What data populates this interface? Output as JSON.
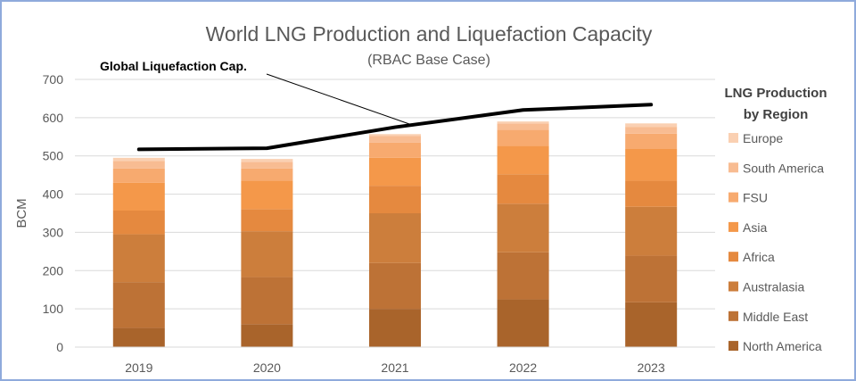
{
  "chart_data": {
    "type": "bar",
    "stacked": true,
    "title": "World LNG Production and Liquefaction Capacity",
    "subtitle": "(RBAC Base Case)",
    "xlabel": "",
    "ylabel": "BCM",
    "ylim": [
      0,
      700
    ],
    "yticks": [
      0,
      100,
      200,
      300,
      400,
      500,
      600,
      700
    ],
    "grid": true,
    "legend_title": "LNG Production by Region",
    "legend_title_lines": [
      "LNG Production",
      "by Region"
    ],
    "legend_position": "right",
    "categories": [
      "2019",
      "2020",
      "2021",
      "2022",
      "2023"
    ],
    "series": [
      {
        "name": "North America",
        "color": "#a9642b",
        "values": [
          50,
          60,
          100,
          125,
          117
        ]
      },
      {
        "name": "Middle East",
        "color": "#bd7236",
        "values": [
          120,
          123,
          120,
          123,
          122
        ]
      },
      {
        "name": "Australasia",
        "color": "#cc7e3c",
        "values": [
          125,
          120,
          130,
          127,
          128
        ]
      },
      {
        "name": "Africa",
        "color": "#e5893f",
        "values": [
          62,
          58,
          72,
          77,
          68
        ]
      },
      {
        "name": "Asia",
        "color": "#f4984a",
        "values": [
          73,
          74,
          73,
          74,
          83
        ]
      },
      {
        "name": "FSU",
        "color": "#f7aa6f",
        "values": [
          37,
          32,
          40,
          42,
          40
        ]
      },
      {
        "name": "South America",
        "color": "#f8bc92",
        "values": [
          20,
          17,
          17,
          17,
          18
        ]
      },
      {
        "name": "Europe",
        "color": "#fad0b2",
        "values": [
          8,
          8,
          5,
          5,
          9
        ]
      }
    ],
    "line": {
      "name": "Global Liquefaction Cap.",
      "color": "#000000",
      "values": [
        517,
        520,
        575,
        620,
        634
      ]
    },
    "annotation": {
      "text": "Global Liquefaction Cap."
    }
  }
}
